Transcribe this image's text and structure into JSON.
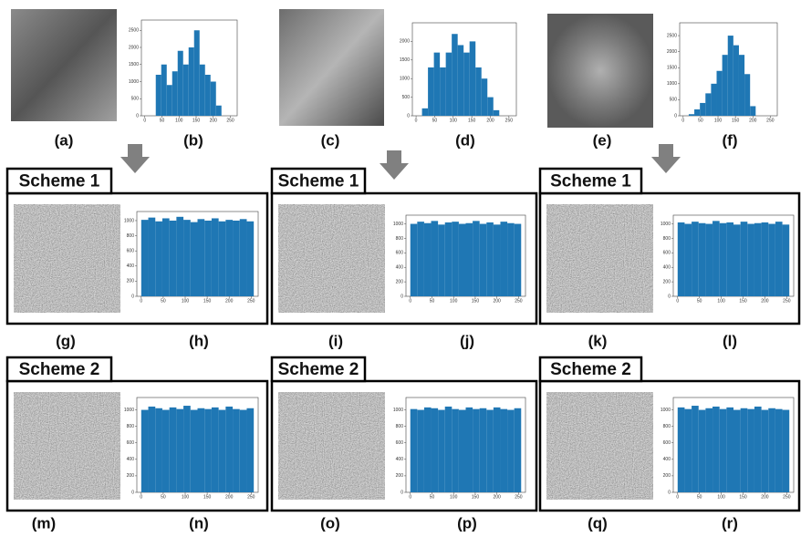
{
  "panel_labels": [
    "(a)",
    "(b)",
    "(c)",
    "(d)",
    "(e)",
    "(f)",
    "(g)",
    "(h)",
    "(i)",
    "(j)",
    "(k)",
    "(l)",
    "(m)",
    "(n)",
    "(o)",
    "(p)",
    "(q)",
    "(r)"
  ],
  "scheme_labels": [
    "Scheme 1",
    "Scheme 1",
    "Scheme 1",
    "Scheme 2",
    "Scheme 2",
    "Scheme 2"
  ],
  "chart_data": [
    {
      "type": "histogram",
      "bins": [
        0,
        16,
        32,
        48,
        64,
        80,
        96,
        112,
        128,
        144,
        160,
        176,
        192,
        208,
        224,
        240,
        256
      ],
      "values": [
        0,
        0,
        1200,
        1500,
        900,
        1300,
        1900,
        1500,
        2000,
        2500,
        1500,
        1200,
        1000,
        300,
        0,
        0
      ],
      "color": "#1f77b4",
      "xlim": [
        -10,
        270
      ],
      "ylim": [
        0,
        2800
      ],
      "xticks": [
        0,
        50,
        100,
        150,
        200,
        250
      ],
      "yticks": [
        0,
        500,
        1000,
        1500,
        2000,
        2500
      ]
    },
    {
      "type": "histogram",
      "bins": [
        0,
        16,
        32,
        48,
        64,
        80,
        96,
        112,
        128,
        144,
        160,
        176,
        192,
        208,
        224,
        240,
        256
      ],
      "values": [
        0,
        200,
        1300,
        1700,
        1300,
        1700,
        2200,
        1900,
        1700,
        2000,
        1300,
        1000,
        500,
        150,
        0,
        0
      ],
      "color": "#1f77b4",
      "xlim": [
        -10,
        270
      ],
      "ylim": [
        0,
        2500
      ],
      "xticks": [
        0,
        50,
        100,
        150,
        200,
        250
      ],
      "yticks": [
        0,
        500,
        1000,
        1500,
        2000
      ]
    },
    {
      "type": "histogram",
      "bins": [
        0,
        16,
        32,
        48,
        64,
        80,
        96,
        112,
        128,
        144,
        160,
        176,
        192,
        208,
        224,
        240,
        256
      ],
      "values": [
        0,
        50,
        200,
        400,
        700,
        1000,
        1400,
        1900,
        2500,
        2200,
        1900,
        1300,
        300,
        0,
        0,
        0
      ],
      "color": "#1f77b4",
      "xlim": [
        -10,
        270
      ],
      "ylim": [
        0,
        2900
      ],
      "xticks": [
        0,
        50,
        100,
        150,
        200,
        250
      ],
      "yticks": [
        0,
        500,
        1000,
        1500,
        2000,
        2500
      ]
    },
    {
      "type": "histogram",
      "bins": [
        0,
        16,
        32,
        48,
        64,
        80,
        96,
        112,
        128,
        144,
        160,
        176,
        192,
        208,
        224,
        240,
        256
      ],
      "values": [
        1010,
        1040,
        990,
        1030,
        1000,
        1050,
        1010,
        980,
        1020,
        1000,
        1030,
        990,
        1010,
        1000,
        1020,
        990
      ],
      "color": "#1f77b4",
      "xlim": [
        -10,
        266
      ],
      "ylim": [
        0,
        1120
      ],
      "xticks": [
        0,
        50,
        100,
        150,
        200,
        250
      ],
      "yticks": [
        0,
        200,
        400,
        600,
        800,
        1000
      ]
    },
    {
      "type": "histogram",
      "bins": [
        0,
        16,
        32,
        48,
        64,
        80,
        96,
        112,
        128,
        144,
        160,
        176,
        192,
        208,
        224,
        240,
        256
      ],
      "values": [
        1000,
        1030,
        1010,
        1040,
        990,
        1020,
        1030,
        1000,
        1010,
        1040,
        1000,
        1020,
        990,
        1030,
        1010,
        1000
      ],
      "color": "#1f77b4",
      "xlim": [
        -10,
        266
      ],
      "ylim": [
        0,
        1120
      ],
      "xticks": [
        0,
        50,
        100,
        150,
        200,
        250
      ],
      "yticks": [
        0,
        200,
        400,
        600,
        800,
        1000
      ]
    },
    {
      "type": "histogram",
      "bins": [
        0,
        16,
        32,
        48,
        64,
        80,
        96,
        112,
        128,
        144,
        160,
        176,
        192,
        208,
        224,
        240,
        256
      ],
      "values": [
        1020,
        1000,
        1030,
        1010,
        1000,
        1040,
        1010,
        1020,
        990,
        1030,
        1000,
        1010,
        1020,
        1000,
        1030,
        990
      ],
      "color": "#1f77b4",
      "xlim": [
        -10,
        266
      ],
      "ylim": [
        0,
        1120
      ],
      "xticks": [
        0,
        50,
        100,
        150,
        200,
        250
      ],
      "yticks": [
        0,
        200,
        400,
        600,
        800,
        1000
      ]
    },
    {
      "type": "histogram",
      "bins": [
        0,
        16,
        32,
        48,
        64,
        80,
        96,
        112,
        128,
        144,
        160,
        176,
        192,
        208,
        224,
        240,
        256
      ],
      "values": [
        1000,
        1040,
        1020,
        1000,
        1030,
        1010,
        1050,
        1000,
        1020,
        1010,
        1030,
        1000,
        1040,
        1010,
        1000,
        1020
      ],
      "color": "#1f77b4",
      "xlim": [
        -10,
        266
      ],
      "ylim": [
        0,
        1150
      ],
      "xticks": [
        0,
        50,
        100,
        150,
        200,
        250
      ],
      "yticks": [
        0,
        200,
        400,
        600,
        800,
        1000
      ]
    },
    {
      "type": "histogram",
      "bins": [
        0,
        16,
        32,
        48,
        64,
        80,
        96,
        112,
        128,
        144,
        160,
        176,
        192,
        208,
        224,
        240,
        256
      ],
      "values": [
        1010,
        1000,
        1030,
        1020,
        1000,
        1040,
        1010,
        1000,
        1030,
        1010,
        1020,
        1000,
        1030,
        1010,
        1000,
        1020
      ],
      "color": "#1f77b4",
      "xlim": [
        -10,
        266
      ],
      "ylim": [
        0,
        1150
      ],
      "xticks": [
        0,
        50,
        100,
        150,
        200,
        250
      ],
      "yticks": [
        0,
        200,
        400,
        600,
        800,
        1000
      ]
    },
    {
      "type": "histogram",
      "bins": [
        0,
        16,
        32,
        48,
        64,
        80,
        96,
        112,
        128,
        144,
        160,
        176,
        192,
        208,
        224,
        240,
        256
      ],
      "values": [
        1030,
        1010,
        1050,
        1000,
        1020,
        1040,
        1010,
        1030,
        1000,
        1020,
        1010,
        1040,
        1000,
        1020,
        1010,
        1000
      ],
      "color": "#1f77b4",
      "xlim": [
        -10,
        266
      ],
      "ylim": [
        0,
        1150
      ],
      "xticks": [
        0,
        50,
        100,
        150,
        200,
        250
      ],
      "yticks": [
        0,
        200,
        400,
        600,
        800,
        1000
      ]
    }
  ]
}
